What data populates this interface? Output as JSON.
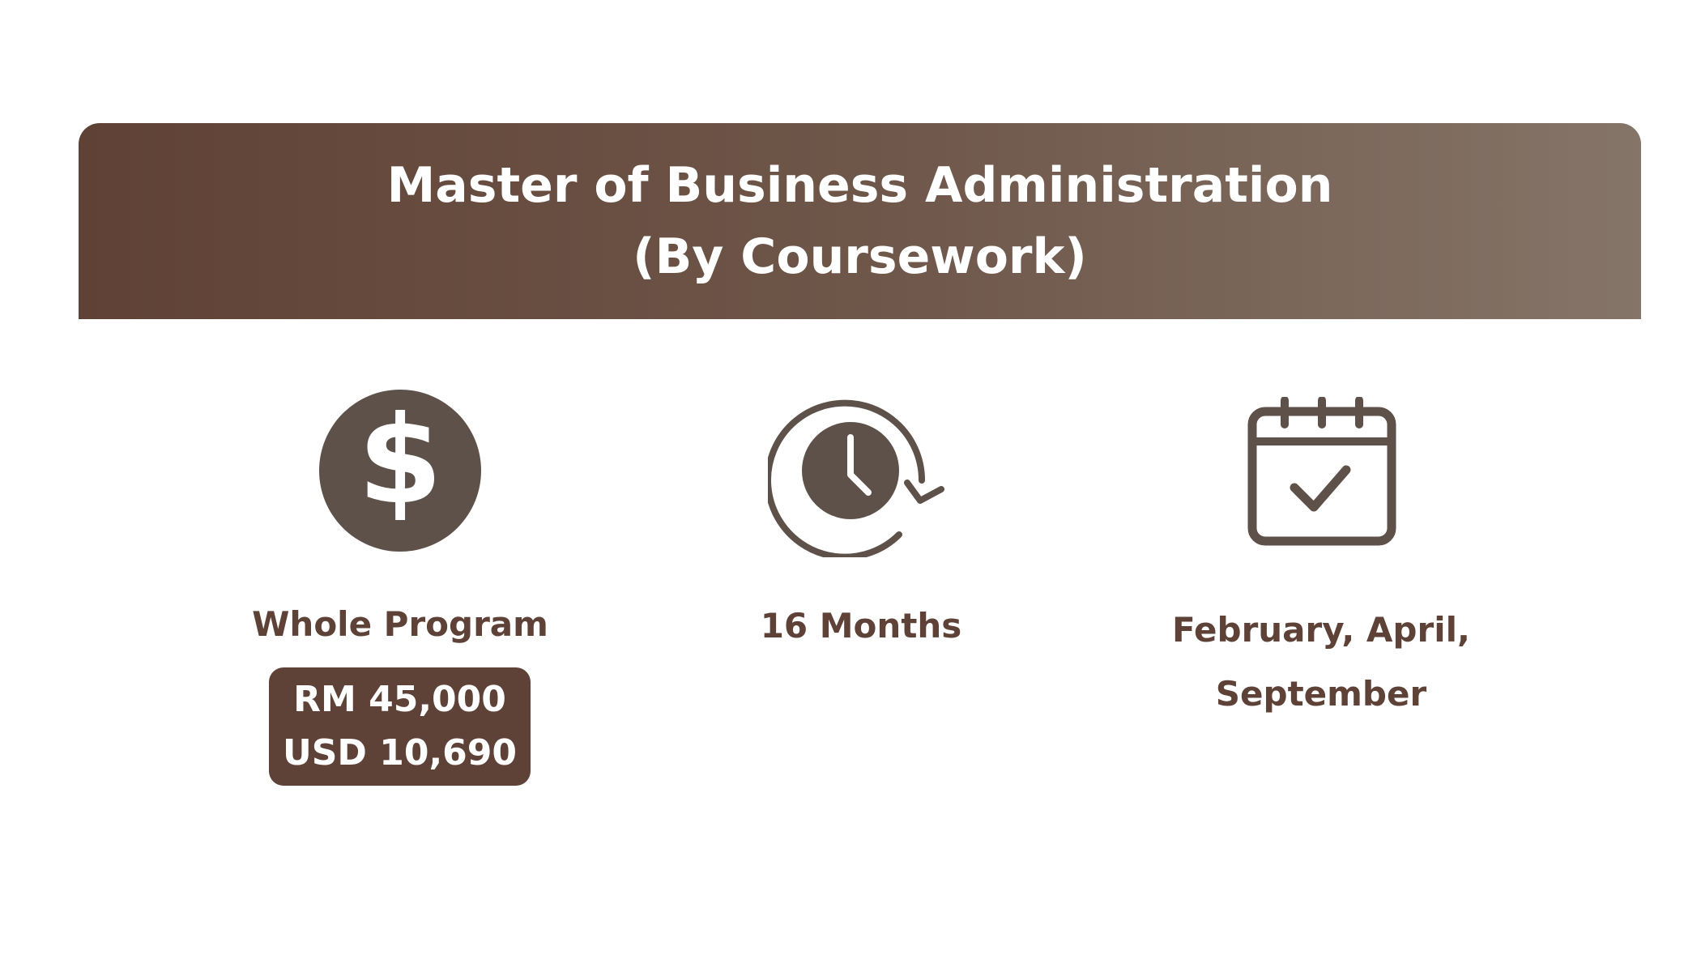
{
  "header": {
    "title_line1": "Master of Business Administration",
    "title_line2": "(By Coursework)"
  },
  "fee": {
    "icon": "dollar-circle-icon",
    "label": "Whole Program",
    "rm": "RM 45,000",
    "usd": "USD 10,690"
  },
  "duration": {
    "icon": "clock-cycle-icon",
    "label": "16 Months"
  },
  "intake": {
    "icon": "calendar-check-icon",
    "line1": "February, April,",
    "line2": "September"
  },
  "colors": {
    "primary": "#5e4238",
    "icon": "#5e514a",
    "header_start": "#5f4235",
    "header_end": "#857468"
  }
}
